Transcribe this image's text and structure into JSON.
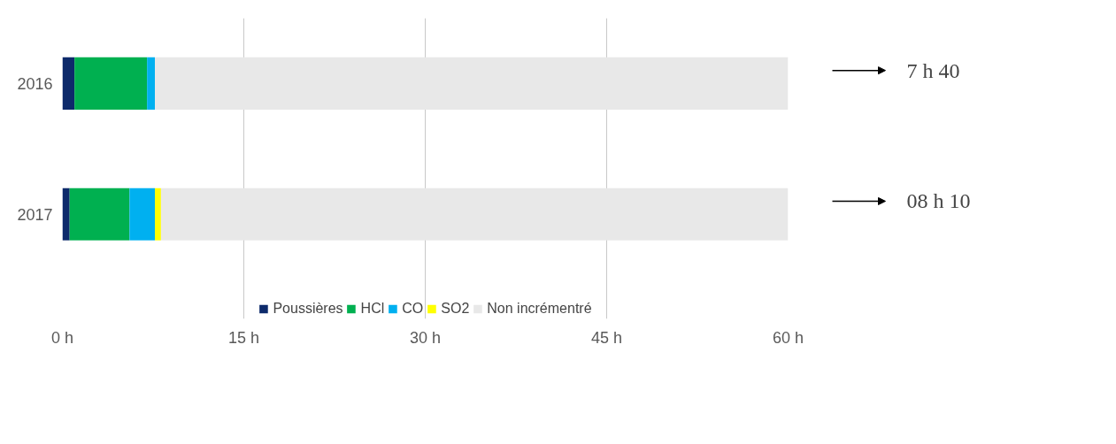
{
  "chart_data": {
    "type": "bar",
    "orientation": "horizontal",
    "stacked": true,
    "categories": [
      "2016",
      "2017"
    ],
    "series": [
      {
        "name": "Poussières",
        "color": "#0d2a6b",
        "values": [
          1.0,
          0.6
        ]
      },
      {
        "name": "HCl",
        "color": "#00b050",
        "values": [
          6.0,
          4.95
        ]
      },
      {
        "name": "CO",
        "color": "#00b0f0",
        "values": [
          0.65,
          2.1
        ]
      },
      {
        "name": "SO2",
        "color": "#ffff00",
        "values": [
          0,
          0.5
        ]
      },
      {
        "name": "Non incrémentré",
        "color": "#e8e8e8",
        "values": [
          52.35,
          51.85
        ]
      }
    ],
    "xlim": [
      0,
      60
    ],
    "xticks": [
      {
        "value": 0,
        "label": "0 h"
      },
      {
        "value": 15,
        "label": "15 h"
      },
      {
        "value": 30,
        "label": "30 h"
      },
      {
        "value": 45,
        "label": "45 h"
      },
      {
        "value": 60,
        "label": "60 h"
      }
    ],
    "grid": "x",
    "legend": "bottom",
    "annotations": [
      "7 h 40",
      "08 h 10"
    ]
  }
}
